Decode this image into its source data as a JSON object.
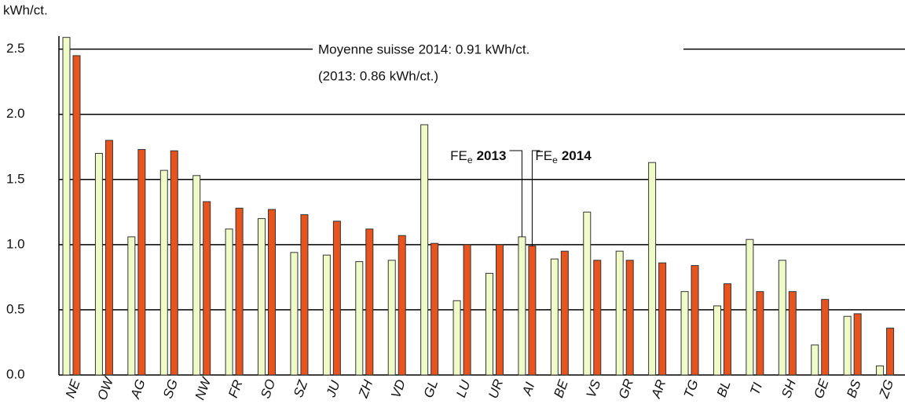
{
  "chart_data": {
    "type": "bar",
    "y_label": "kWh/ct.",
    "annotations": [
      "Moyenne suisse 2014: 0.91 kWh/ct.",
      "(2013: 0.86 kWh/ct.)"
    ],
    "legend_prefix": "FE",
    "legend_subscript": "e",
    "categories": [
      "NE",
      "OW",
      "AG",
      "SG",
      "NW",
      "FR",
      "SO",
      "SZ",
      "JU",
      "ZH",
      "VD",
      "GL",
      "LU",
      "UR",
      "AI",
      "BE",
      "VS",
      "GR",
      "AR",
      "TG",
      "BL",
      "TI",
      "SH",
      "GE",
      "BS",
      "ZG"
    ],
    "series": [
      {
        "name": "2013",
        "color": "#f0fcc8",
        "values": [
          2.59,
          1.7,
          1.06,
          1.57,
          1.53,
          1.12,
          1.2,
          0.94,
          0.92,
          0.87,
          0.88,
          1.92,
          0.57,
          0.78,
          1.06,
          0.89,
          1.25,
          0.95,
          1.63,
          0.64,
          0.53,
          1.04,
          0.88,
          0.23,
          0.45,
          0.07
        ]
      },
      {
        "name": "2014",
        "color": "#e8541e",
        "values": [
          2.45,
          1.8,
          1.73,
          1.72,
          1.33,
          1.28,
          1.27,
          1.23,
          1.18,
          1.12,
          1.07,
          1.01,
          1.0,
          1.0,
          0.99,
          0.95,
          0.88,
          0.88,
          0.86,
          0.84,
          0.7,
          0.64,
          0.64,
          0.58,
          0.47,
          0.36
        ]
      }
    ],
    "ylim": [
      0,
      2.6
    ],
    "yticks": [
      {
        "value": 0,
        "label": "0.0"
      },
      0.5,
      {
        "value": 1,
        "label": "1.0"
      },
      1.5,
      {
        "value": 2,
        "label": "2.0"
      },
      2.5
    ],
    "grid": true
  }
}
